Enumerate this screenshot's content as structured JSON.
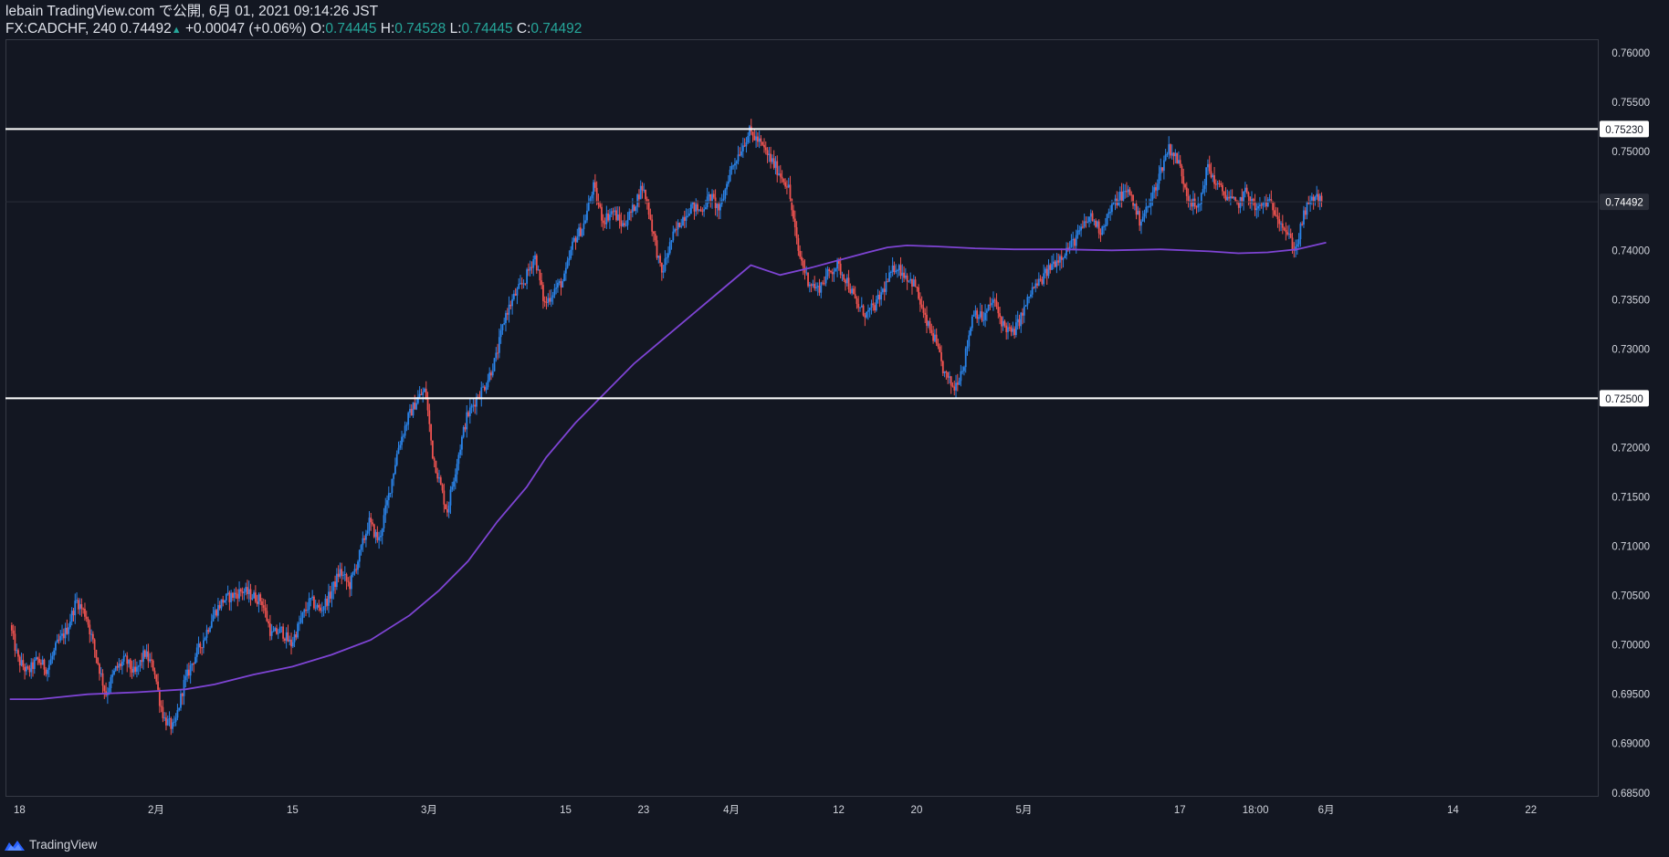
{
  "header": {
    "line1": "lebain TradingView.com で公開, 6月 01, 2021 09:14:26 JST",
    "symbol": "FX:CADCHF, 240",
    "last": "0.74492",
    "change_arrow": "▲",
    "change": "+0.00047 (+0.06%)",
    "o_label": "O:",
    "o_value": "0.74445",
    "h_label": "H:",
    "h_value": "0.74528",
    "l_label": "L:",
    "l_value": "0.74445",
    "c_label": "C:",
    "c_value": "0.74492"
  },
  "footer": {
    "brand": "TradingView",
    "logo_icon": "tradingview-logo-icon"
  },
  "colors": {
    "background": "#131722",
    "up": "#2a83e8",
    "down": "#ef5350",
    "ma": "#7e44d4",
    "hline": "#ffffff",
    "axis_text": "#d1d4dc",
    "header_value": "#26a69a"
  },
  "chart_data": {
    "type": "candlestick",
    "title": "FX:CADCHF, 240",
    "y_axis": {
      "range": [
        0.6847,
        0.7614
      ],
      "ticks": [
        "0.76000",
        "0.75500",
        "0.75000",
        "0.74000",
        "0.73500",
        "0.73000",
        "0.72000",
        "0.71500",
        "0.71000",
        "0.70500",
        "0.70000",
        "0.69500",
        "0.69000",
        "0.68500"
      ]
    },
    "x_axis": {
      "ticks": [
        {
          "label": "18",
          "day": 18
        },
        {
          "label": "2月",
          "day": 32
        },
        {
          "label": "15",
          "day": 46
        },
        {
          "label": "3月",
          "day": 60
        },
        {
          "label": "15",
          "day": 74
        },
        {
          "label": "23",
          "day": 82
        },
        {
          "label": "4月",
          "day": 91
        },
        {
          "label": "12",
          "day": 102
        },
        {
          "label": "20",
          "day": 110
        },
        {
          "label": "5月",
          "day": 121
        },
        {
          "label": "17",
          "day": 137
        },
        {
          "label": "18:00",
          "day": 144.75
        },
        {
          "label": "6月",
          "day": 152
        },
        {
          "label": "14",
          "day": 165
        },
        {
          "label": "22",
          "day": 173
        }
      ]
    },
    "horizontal_lines": [
      {
        "price": 0.7523,
        "label": "0.75230"
      },
      {
        "price": 0.725,
        "label": "0.72500"
      }
    ],
    "current_price": {
      "price": 0.74492,
      "label": "0.74492"
    },
    "price_path": [
      [
        17.2,
        0.702
      ],
      [
        18,
        0.6985
      ],
      [
        19,
        0.6972
      ],
      [
        20,
        0.6985
      ],
      [
        21,
        0.6975
      ],
      [
        22,
        0.7
      ],
      [
        23,
        0.7015
      ],
      [
        24,
        0.7045
      ],
      [
        25,
        0.703
      ],
      [
        26,
        0.699
      ],
      [
        27,
        0.695
      ],
      [
        28,
        0.6975
      ],
      [
        29,
        0.6985
      ],
      [
        30,
        0.697
      ],
      [
        31,
        0.6992
      ],
      [
        32,
        0.6975
      ],
      [
        32.5,
        0.6945
      ],
      [
        33,
        0.6925
      ],
      [
        34,
        0.6915
      ],
      [
        35,
        0.696
      ],
      [
        36,
        0.6985
      ],
      [
        37,
        0.7005
      ],
      [
        38,
        0.703
      ],
      [
        39,
        0.7045
      ],
      [
        40,
        0.705
      ],
      [
        41,
        0.7055
      ],
      [
        42,
        0.705
      ],
      [
        43,
        0.7045
      ],
      [
        44,
        0.701
      ],
      [
        45,
        0.7015
      ],
      [
        46,
        0.7
      ],
      [
        47,
        0.7025
      ],
      [
        48,
        0.7045
      ],
      [
        49,
        0.7035
      ],
      [
        50,
        0.705
      ],
      [
        51,
        0.7075
      ],
      [
        52,
        0.706
      ],
      [
        53,
        0.709
      ],
      [
        54,
        0.7125
      ],
      [
        55,
        0.7105
      ],
      [
        56,
        0.715
      ],
      [
        57,
        0.72
      ],
      [
        58,
        0.723
      ],
      [
        59,
        0.725
      ],
      [
        59.8,
        0.7258
      ],
      [
        60.5,
        0.7195
      ],
      [
        61,
        0.7175
      ],
      [
        62,
        0.7135
      ],
      [
        63,
        0.7185
      ],
      [
        64,
        0.723
      ],
      [
        65,
        0.725
      ],
      [
        66,
        0.7265
      ],
      [
        67,
        0.729
      ],
      [
        68,
        0.7335
      ],
      [
        69,
        0.7355
      ],
      [
        70,
        0.737
      ],
      [
        71,
        0.7395
      ],
      [
        72,
        0.7345
      ],
      [
        73,
        0.736
      ],
      [
        74,
        0.737
      ],
      [
        75,
        0.741
      ],
      [
        76,
        0.7425
      ],
      [
        77,
        0.7465
      ],
      [
        78,
        0.743
      ],
      [
        79,
        0.744
      ],
      [
        80,
        0.7425
      ],
      [
        81,
        0.744
      ],
      [
        82,
        0.7465
      ],
      [
        82.5,
        0.745
      ],
      [
        83,
        0.7425
      ],
      [
        84,
        0.7375
      ],
      [
        85,
        0.741
      ],
      [
        86,
        0.743
      ],
      [
        87,
        0.7445
      ],
      [
        88,
        0.744
      ],
      [
        89,
        0.7455
      ],
      [
        90,
        0.744
      ],
      [
        91,
        0.748
      ],
      [
        92,
        0.75
      ],
      [
        93,
        0.752
      ],
      [
        94,
        0.751
      ],
      [
        95,
        0.7495
      ],
      [
        96,
        0.748
      ],
      [
        97,
        0.7465
      ],
      [
        98,
        0.74
      ],
      [
        99,
        0.737
      ],
      [
        100,
        0.736
      ],
      [
        101,
        0.7375
      ],
      [
        102,
        0.7385
      ],
      [
        103,
        0.737
      ],
      [
        104,
        0.7345
      ],
      [
        105,
        0.7335
      ],
      [
        106,
        0.7345
      ],
      [
        107,
        0.7365
      ],
      [
        108,
        0.7385
      ],
      [
        109,
        0.7375
      ],
      [
        110,
        0.7365
      ],
      [
        111,
        0.733
      ],
      [
        112,
        0.731
      ],
      [
        113,
        0.7275
      ],
      [
        114,
        0.726
      ],
      [
        115,
        0.7285
      ],
      [
        116,
        0.734
      ],
      [
        117,
        0.733
      ],
      [
        118,
        0.735
      ],
      [
        119,
        0.7325
      ],
      [
        120,
        0.7315
      ],
      [
        121,
        0.7335
      ],
      [
        122,
        0.736
      ],
      [
        123,
        0.737
      ],
      [
        124,
        0.7385
      ],
      [
        125,
        0.7395
      ],
      [
        126,
        0.7405
      ],
      [
        127,
        0.742
      ],
      [
        128,
        0.7435
      ],
      [
        129,
        0.742
      ],
      [
        130,
        0.744
      ],
      [
        131,
        0.7455
      ],
      [
        132,
        0.746
      ],
      [
        133,
        0.743
      ],
      [
        134,
        0.7445
      ],
      [
        135,
        0.7475
      ],
      [
        136,
        0.7505
      ],
      [
        137,
        0.749
      ],
      [
        138,
        0.7455
      ],
      [
        139,
        0.744
      ],
      [
        140,
        0.7485
      ],
      [
        141,
        0.7465
      ],
      [
        142,
        0.7455
      ],
      [
        143,
        0.7445
      ],
      [
        144,
        0.746
      ],
      [
        145,
        0.744
      ],
      [
        146,
        0.745
      ],
      [
        147,
        0.744
      ],
      [
        148,
        0.742
      ],
      [
        149,
        0.74
      ],
      [
        150,
        0.744
      ],
      [
        151,
        0.7455
      ],
      [
        151.6,
        0.7449
      ]
    ],
    "moving_average": {
      "points": [
        [
          17,
          0.6945
        ],
        [
          20,
          0.6945
        ],
        [
          25,
          0.695
        ],
        [
          30,
          0.6952
        ],
        [
          35,
          0.6955
        ],
        [
          38,
          0.696
        ],
        [
          42,
          0.697
        ],
        [
          46,
          0.6978
        ],
        [
          50,
          0.699
        ],
        [
          54,
          0.7005
        ],
        [
          58,
          0.703
        ],
        [
          61,
          0.7055
        ],
        [
          64,
          0.7085
        ],
        [
          67,
          0.7125
        ],
        [
          70,
          0.716
        ],
        [
          72,
          0.719
        ],
        [
          75,
          0.7225
        ],
        [
          78,
          0.7255
        ],
        [
          81,
          0.7285
        ],
        [
          84,
          0.731
        ],
        [
          87,
          0.7335
        ],
        [
          90,
          0.736
        ],
        [
          93,
          0.7385
        ],
        [
          96,
          0.7375
        ],
        [
          99,
          0.7382
        ],
        [
          102,
          0.739
        ],
        [
          105,
          0.7398
        ],
        [
          107,
          0.7403
        ],
        [
          109,
          0.7405
        ],
        [
          112,
          0.7404
        ],
        [
          116,
          0.7402
        ],
        [
          120,
          0.7401
        ],
        [
          125,
          0.7401
        ],
        [
          130,
          0.74
        ],
        [
          135,
          0.7401
        ],
        [
          140,
          0.7399
        ],
        [
          143,
          0.7397
        ],
        [
          146,
          0.7398
        ],
        [
          149,
          0.7401
        ],
        [
          152,
          0.7408
        ]
      ]
    }
  }
}
